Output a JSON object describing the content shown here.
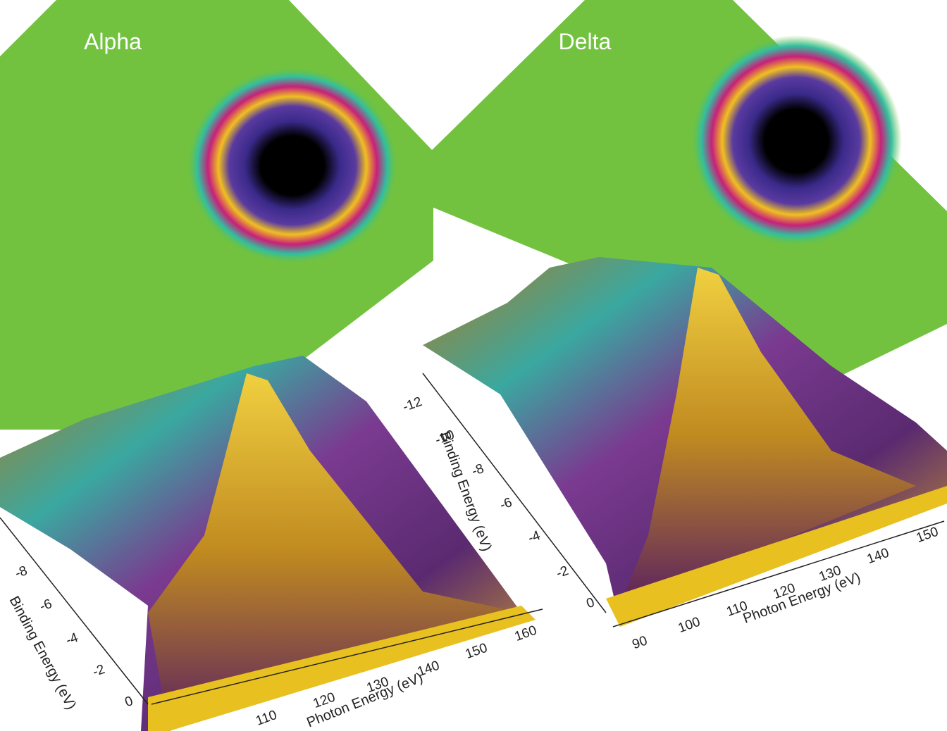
{
  "panels": [
    {
      "title": "Alpha",
      "x_axis_title": "Photon Energy (eV)",
      "y_axis_title": "Binding Energy (eV)",
      "x_ticks": [
        "110",
        "120",
        "130",
        "140",
        "150",
        "160"
      ],
      "y_ticks": [
        "0",
        "-2",
        "-4",
        "-6",
        "-8"
      ]
    },
    {
      "title": "Delta",
      "x_axis_title": "Photon Energy (eV)",
      "y_axis_title": "Binding Energy (eV)",
      "x_ticks": [
        "90",
        "100",
        "110",
        "120",
        "130",
        "140",
        "150"
      ],
      "y_ticks": [
        "0",
        "-2",
        "-4",
        "-6",
        "-8",
        "-10",
        "-12"
      ]
    }
  ]
}
